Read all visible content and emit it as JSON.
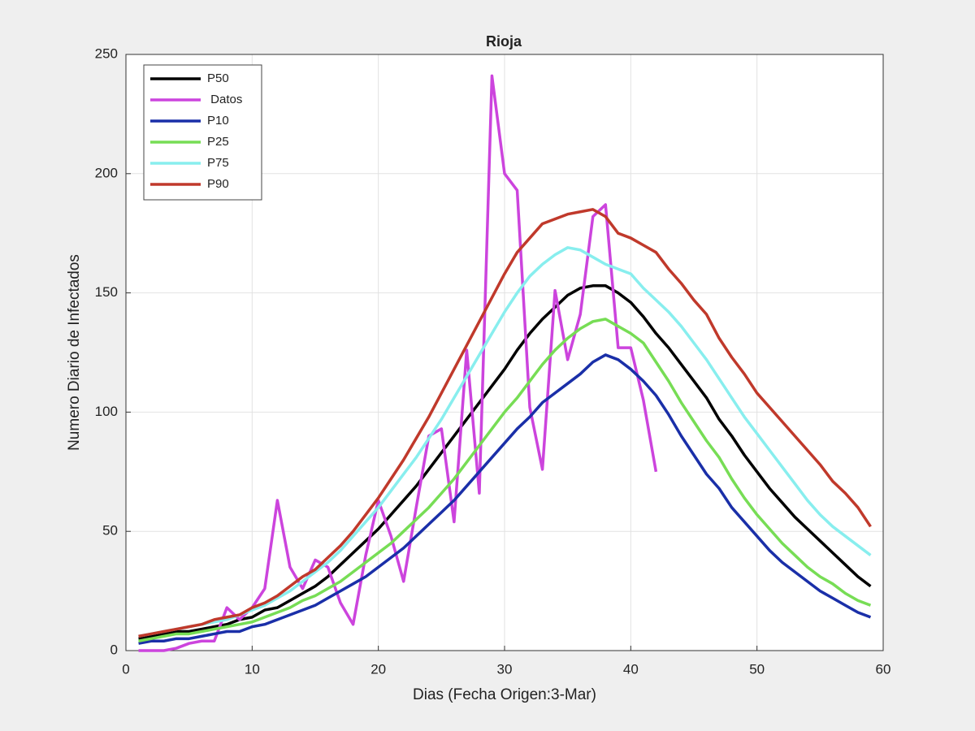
{
  "chart_data": {
    "type": "line",
    "title": "Rioja",
    "x_label": "Dias (Fecha Origen:3-Mar)",
    "y_label": "Numero Diario de Infectados",
    "xlim": [
      0,
      60
    ],
    "ylim": [
      0,
      250
    ],
    "xticks": [
      0,
      10,
      20,
      30,
      40,
      50,
      60
    ],
    "yticks": [
      0,
      50,
      100,
      150,
      200,
      250
    ],
    "grid": true,
    "legend": "upper left",
    "x": [
      1,
      2,
      3,
      4,
      5,
      6,
      7,
      8,
      9,
      10,
      11,
      12,
      13,
      14,
      15,
      16,
      17,
      18,
      19,
      20,
      21,
      22,
      23,
      24,
      25,
      26,
      27,
      28,
      29,
      30,
      31,
      32,
      33,
      34,
      35,
      36,
      37,
      38,
      39,
      40,
      41,
      42,
      43,
      44,
      45,
      46,
      47,
      48,
      49,
      50,
      51,
      52,
      53,
      54,
      55,
      56,
      57,
      58,
      59
    ],
    "series": [
      {
        "name": "P50",
        "color": "#000000",
        "values": [
          5,
          6,
          7,
          8,
          8,
          9,
          10,
          11,
          13,
          14,
          17,
          18,
          21,
          24,
          27,
          31,
          36,
          41,
          46,
          51,
          57,
          63,
          69,
          76,
          83,
          90,
          97,
          104,
          111,
          118,
          126,
          133,
          139,
          144,
          149,
          152,
          153,
          153,
          150,
          146,
          140,
          133,
          127,
          120,
          113,
          106,
          97,
          90,
          82,
          75,
          68,
          62,
          56,
          51,
          46,
          41,
          36,
          31,
          27
        ]
      },
      {
        "name": " Datos",
        "color": "#cc44dd",
        "values": [
          0,
          0,
          0,
          1,
          3,
          4,
          4,
          18,
          13,
          18,
          26,
          63,
          35,
          26,
          38,
          35,
          20,
          11,
          40,
          63,
          48,
          29,
          60,
          90,
          93,
          54,
          126,
          66,
          241,
          200,
          193,
          102,
          76,
          151,
          122,
          141,
          182,
          187,
          127,
          127,
          105,
          75,
          null,
          null,
          null,
          null,
          null,
          null,
          null,
          null,
          null,
          null,
          null,
          null,
          null,
          null,
          null,
          null,
          null
        ]
      },
      {
        "name": "P10",
        "color": "#1a2fa8",
        "values": [
          3,
          4,
          4,
          5,
          5,
          6,
          7,
          8,
          8,
          10,
          11,
          13,
          15,
          17,
          19,
          22,
          25,
          28,
          31,
          35,
          39,
          43,
          48,
          53,
          58,
          63,
          69,
          75,
          81,
          87,
          93,
          98,
          104,
          108,
          112,
          116,
          121,
          124,
          122,
          118,
          113,
          107,
          99,
          90,
          82,
          74,
          68,
          60,
          54,
          48,
          42,
          37,
          33,
          29,
          25,
          22,
          19,
          16,
          14
        ]
      },
      {
        "name": "P25",
        "color": "#77dd55",
        "values": [
          4,
          5,
          6,
          7,
          7,
          8,
          9,
          10,
          11,
          12,
          14,
          16,
          18,
          21,
          23,
          26,
          29,
          33,
          37,
          41,
          45,
          50,
          55,
          60,
          66,
          72,
          79,
          86,
          93,
          100,
          106,
          113,
          120,
          126,
          131,
          135,
          138,
          139,
          136,
          133,
          129,
          121,
          113,
          104,
          96,
          88,
          81,
          72,
          64,
          57,
          51,
          45,
          40,
          35,
          31,
          28,
          24,
          21,
          19
        ]
      },
      {
        "name": "P75",
        "color": "#88eeee",
        "values": [
          6,
          7,
          8,
          9,
          10,
          11,
          12,
          13,
          15,
          17,
          19,
          22,
          25,
          29,
          33,
          37,
          42,
          48,
          54,
          60,
          67,
          74,
          81,
          89,
          97,
          106,
          115,
          124,
          133,
          142,
          150,
          157,
          162,
          166,
          169,
          168,
          165,
          162,
          160,
          158,
          152,
          147,
          142,
          136,
          129,
          122,
          114,
          106,
          98,
          91,
          84,
          77,
          70,
          63,
          57,
          52,
          48,
          44,
          40
        ]
      },
      {
        "name": "P90",
        "color": "#c0392b",
        "values": [
          6,
          7,
          8,
          9,
          10,
          11,
          13,
          14,
          15,
          18,
          20,
          23,
          27,
          31,
          34,
          39,
          44,
          50,
          57,
          64,
          72,
          80,
          89,
          98,
          108,
          118,
          128,
          138,
          148,
          158,
          167,
          173,
          179,
          181,
          183,
          184,
          185,
          182,
          175,
          173,
          170,
          167,
          160,
          154,
          147,
          141,
          131,
          123,
          116,
          108,
          102,
          96,
          90,
          84,
          78,
          71,
          66,
          60,
          52
        ]
      }
    ]
  }
}
